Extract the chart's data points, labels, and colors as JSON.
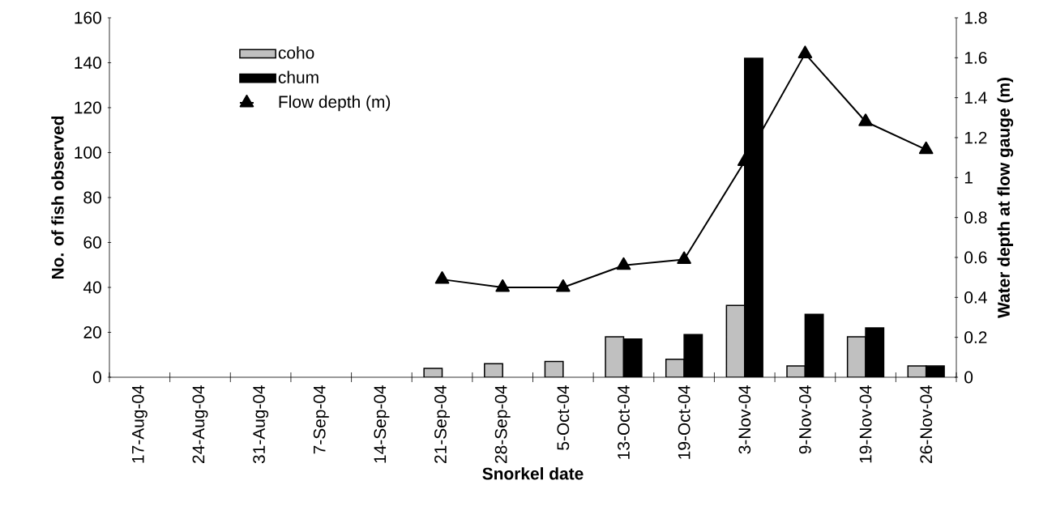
{
  "chart_data": {
    "type": "bar",
    "xlabel": "Snorkel date",
    "ylabel": "No. of fish observed",
    "y2label": "Water depth at flow gauge (m)",
    "categories": [
      "17-Aug-04",
      "24-Aug-04",
      "31-Aug-04",
      "7-Sep-04",
      "14-Sep-04",
      "21-Sep-04",
      "28-Sep-04",
      "5-Oct-04",
      "13-Oct-04",
      "19-Oct-04",
      "3-Nov-04",
      "9-Nov-04",
      "19-Nov-04",
      "26-Nov-04"
    ],
    "ylim": [
      0,
      160
    ],
    "yticks": [
      0,
      20,
      40,
      60,
      80,
      100,
      120,
      140,
      160
    ],
    "y2lim": [
      0,
      1.8
    ],
    "y2ticks": [
      0,
      0.2,
      0.4,
      0.6,
      0.8,
      1,
      1.2,
      1.4,
      1.6,
      1.8
    ],
    "legend": "top left",
    "grid": false,
    "series": [
      {
        "name": "coho",
        "color": "#c0c0c0",
        "values": [
          null,
          null,
          null,
          null,
          null,
          4,
          6,
          7,
          18,
          8,
          32,
          5,
          18,
          5
        ]
      },
      {
        "name": "chum",
        "color": "#000000",
        "values": [
          null,
          null,
          null,
          null,
          null,
          null,
          null,
          null,
          17,
          19,
          142,
          28,
          22,
          5
        ]
      },
      {
        "name": "Flow depth (m)",
        "type": "line",
        "axis": "y2",
        "color": "#000000",
        "marker": "triangle",
        "values": [
          null,
          null,
          null,
          null,
          null,
          0.49,
          0.45,
          0.45,
          0.56,
          0.59,
          1.08,
          1.62,
          1.28,
          1.14
        ]
      }
    ]
  }
}
